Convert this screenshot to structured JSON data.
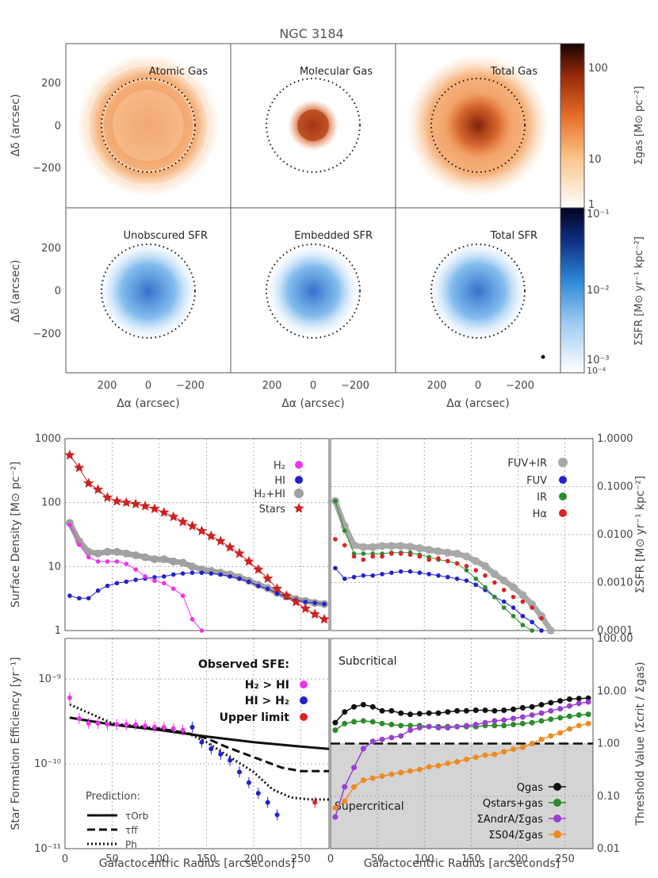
{
  "figure_title": "NGC 3184",
  "maps": {
    "gas_titles": [
      "Atomic Gas",
      "Molecular Gas",
      "Total Gas"
    ],
    "sfr_titles": [
      "Unobscured SFR",
      "Embedded SFR",
      "Total SFR"
    ],
    "ylabel": "Δδ (arcsec)",
    "xlabel": "Δα (arcsec)",
    "y_ticks": [
      "200",
      "0",
      "−200"
    ],
    "x_ticks": [
      "200",
      "0",
      "−200"
    ],
    "gas_colorbar_label": "Σgas [M⊙ pc⁻²]",
    "gas_colorbar_ticks": [
      "100",
      "10",
      "1"
    ],
    "sfr_colorbar_label": "ΣSFR [M⊙ yr⁻¹ kpc⁻²]",
    "sfr_colorbar_ticks": [
      "10⁻¹",
      "10⁻²",
      "10⁻³",
      "10⁻⁴"
    ],
    "colors": {
      "gas": "#e8702a",
      "sfr": "#2f8ad8"
    }
  },
  "chart_data": [
    {
      "type": "line",
      "name": "surface-density",
      "ylabel": "Surface Density [M⊙ pc⁻²]",
      "xlim": [
        0,
        280
      ],
      "ylim": [
        1,
        1000
      ],
      "ylog": true,
      "y_ticks": [
        "1000",
        "100",
        "10",
        "1"
      ],
      "x": [
        5,
        15,
        25,
        35,
        45,
        55,
        65,
        75,
        85,
        95,
        105,
        115,
        125,
        135,
        145,
        155,
        165,
        175,
        185,
        195,
        205,
        215,
        225,
        235,
        245,
        255,
        265,
        275
      ],
      "series": [
        {
          "name": "H₂",
          "color": "#ee33ee",
          "values": [
            45,
            22,
            14,
            12,
            12,
            12,
            11,
            9,
            7,
            6,
            5.5,
            4.5,
            3.5,
            1.5,
            1,
            null,
            null,
            null,
            null,
            null,
            null,
            null,
            null,
            null,
            null,
            null,
            null,
            null
          ]
        },
        {
          "name": "HI",
          "color": "#2222cc",
          "values": [
            3.5,
            3.2,
            3.2,
            4.2,
            5,
            5.5,
            5.8,
            6.2,
            6.5,
            6.8,
            7,
            7.5,
            7.8,
            8,
            8,
            7.8,
            7.5,
            7,
            6.5,
            5.8,
            5,
            4.5,
            3.8,
            3.3,
            3,
            2.8,
            2.7,
            2.6
          ]
        },
        {
          "name": "H₂+HI",
          "color": "#a0a0a0",
          "values": [
            48,
            25,
            17,
            16,
            17,
            17,
            16,
            15,
            14,
            13,
            13,
            12,
            11.5,
            10,
            9,
            8.5,
            8,
            7.5,
            6.8,
            6,
            5.2,
            4.6,
            3.9,
            3.4,
            3.1,
            2.9,
            2.7,
            2.6
          ]
        },
        {
          "name": "Stars",
          "color": "#cc2222",
          "values": [
            550,
            350,
            200,
            160,
            120,
            105,
            100,
            95,
            88,
            80,
            70,
            60,
            50,
            43,
            36,
            30,
            25,
            20,
            16,
            12,
            9,
            6.5,
            4.5,
            3.5,
            2.8,
            2.2,
            1.8,
            1.5
          ]
        }
      ]
    },
    {
      "type": "line",
      "name": "sfr-density",
      "ylabel": "ΣSFR [M⊙ yr⁻¹ kpc⁻²]",
      "xlim": [
        0,
        280
      ],
      "ylim": [
        0.0001,
        1
      ],
      "ylog": true,
      "y_ticks": [
        "1.0000",
        "0.1000",
        "0.0100",
        "0.0010",
        "0.0001"
      ],
      "x": [
        5,
        15,
        25,
        35,
        45,
        55,
        65,
        75,
        85,
        95,
        105,
        115,
        125,
        135,
        145,
        155,
        165,
        175,
        185,
        195,
        205,
        215,
        225,
        235,
        245,
        255,
        265,
        275
      ],
      "series": [
        {
          "name": "FUV+IR",
          "color": "#a8a8a8",
          "values": [
            0.05,
            0.015,
            0.006,
            0.0055,
            0.0055,
            0.0058,
            0.0058,
            0.0058,
            0.0056,
            0.0052,
            0.0048,
            0.0045,
            0.0042,
            0.004,
            0.0035,
            0.0028,
            0.0022,
            0.0015,
            0.0011,
            0.0008,
            0.00055,
            0.00035,
            0.0002,
            0.0001,
            null,
            null,
            null,
            null
          ]
        },
        {
          "name": "FUV",
          "color": "#2222cc",
          "values": [
            0.002,
            0.0012,
            0.0013,
            0.0014,
            0.0014,
            0.0015,
            0.0016,
            0.0017,
            0.0017,
            0.0016,
            0.0015,
            0.0014,
            0.0013,
            0.0012,
            0.0011,
            0.0009,
            0.0007,
            0.0005,
            0.0004,
            0.0003,
            0.0002,
            0.00015,
            0.0001,
            null,
            null,
            null,
            null,
            null
          ]
        },
        {
          "name": "IR",
          "color": "#2a8c2a",
          "values": [
            0.05,
            0.012,
            0.004,
            0.004,
            0.004,
            0.004,
            0.0042,
            0.0042,
            0.0042,
            0.0038,
            0.0034,
            0.003,
            0.0028,
            0.0025,
            0.0018,
            0.0012,
            0.0008,
            0.0005,
            0.0003,
            0.0002,
            0.00013,
            0.0001,
            null,
            null,
            null,
            null,
            null,
            null
          ]
        },
        {
          "name": "Hα",
          "color": "#dd2222",
          "values": [
            0.008,
            0.006,
            0.0035,
            0.003,
            0.0035,
            0.0035,
            0.004,
            0.004,
            0.0038,
            0.0035,
            0.003,
            0.0032,
            0.0028,
            0.0025,
            0.0022,
            0.0018,
            0.0014,
            0.001,
            0.0007,
            0.0005,
            0.0004,
            0.0003,
            0.00018,
            null,
            null,
            null,
            null,
            null
          ]
        }
      ]
    },
    {
      "type": "line",
      "name": "star-formation-efficiency",
      "ylabel": "Star Formation Efficiency [yr⁻¹]",
      "xlabel": "Galactocentric Radius [arcseconds]",
      "xlim": [
        0,
        280
      ],
      "ylim": [
        1e-11,
        3e-09
      ],
      "ylog": true,
      "y_ticks": [
        "10⁻⁹",
        "10⁻¹⁰",
        "10⁻¹¹"
      ],
      "x_ticks": [
        "0",
        "50",
        "100",
        "150",
        "200",
        "250"
      ],
      "legend_title": "Observed SFE:",
      "points": [
        {
          "name": "H₂ > HI",
          "color": "#ee33ee",
          "x": [
            5,
            15,
            25,
            35,
            45,
            55,
            65,
            75,
            85,
            95,
            105,
            115,
            125
          ],
          "y": [
            6e-10,
            3.4e-10,
            3e-10,
            3e-10,
            2.9e-10,
            2.9e-10,
            2.9e-10,
            2.9e-10,
            2.8e-10,
            2.7e-10,
            2.7e-10,
            2.6e-10,
            2.5e-10
          ]
        },
        {
          "name": "HI > H₂",
          "color": "#2222cc",
          "x": [
            135,
            145,
            155,
            165,
            175,
            185,
            195,
            205,
            215,
            225
          ],
          "y": [
            2.7e-10,
            1.8e-10,
            1.5e-10,
            1.3e-10,
            1.1e-10,
            8e-11,
            6e-11,
            4.5e-11,
            3.5e-11,
            2.5e-11
          ]
        },
        {
          "name": "Upper limit",
          "color": "#dd2222",
          "x": [
            265
          ],
          "y": [
            3.5e-11
          ]
        }
      ],
      "prediction_title": "Prediction:",
      "series": [
        {
          "name": "τOrb",
          "dash": "solid",
          "x": [
            5,
            50,
            100,
            150,
            200,
            250,
            280
          ],
          "values": [
            3.5e-10,
            2.9e-10,
            2.5e-10,
            2.1e-10,
            1.8e-10,
            1.6e-10,
            1.5e-10
          ]
        },
        {
          "name": "τff",
          "dash": "dashed",
          "x": [
            5,
            50,
            100,
            130,
            150,
            170,
            200,
            230,
            250,
            280
          ],
          "values": [
            3.5e-10,
            2.9e-10,
            2.6e-10,
            2.3e-10,
            2e-10,
            1.6e-10,
            1.2e-10,
            9e-11,
            8.2e-11,
            8.2e-11
          ]
        },
        {
          "name": "Ph",
          "dash": "dotted",
          "x": [
            5,
            50,
            100,
            130,
            150,
            170,
            200,
            220,
            240,
            260,
            280
          ],
          "values": [
            5e-10,
            3e-10,
            2.6e-10,
            2.3e-10,
            1.8e-10,
            1.3e-10,
            8e-11,
            5e-11,
            4e-11,
            3.8e-11,
            3.8e-11
          ]
        }
      ]
    },
    {
      "type": "line",
      "name": "threshold",
      "ylabel": "Threshold Value (Σcrit / Σgas)",
      "xlabel": "Galactocentric Radius [arcseconds]",
      "xlim": [
        0,
        280
      ],
      "ylim": [
        0.01,
        100
      ],
      "ylog": true,
      "y_ticks": [
        "100.00",
        "10.00",
        "1.00",
        "0.10",
        "0.01"
      ],
      "x_ticks": [
        "0",
        "50",
        "100",
        "150",
        "200",
        "250"
      ],
      "threshold": 1.0,
      "region_labels": [
        "Subcritical",
        "Supercritical"
      ],
      "x": [
        5,
        15,
        25,
        35,
        45,
        55,
        65,
        75,
        85,
        95,
        105,
        115,
        125,
        135,
        145,
        155,
        165,
        175,
        185,
        195,
        205,
        215,
        225,
        235,
        245,
        255,
        265,
        275
      ],
      "series": [
        {
          "name": "Qgas",
          "color": "#111111",
          "values": [
            2.5,
            4,
            5,
            5.5,
            5,
            4.2,
            4.2,
            3.8,
            3.6,
            3.7,
            3.8,
            3.8,
            4,
            4.2,
            4.2,
            4.3,
            4.3,
            4.2,
            4.3,
            4.5,
            4.8,
            5,
            5.5,
            6,
            6.5,
            7,
            7.2,
            7.3
          ]
        },
        {
          "name": "Qstars+gas",
          "color": "#2a8c2a",
          "values": [
            1.8,
            2.4,
            2.6,
            2.7,
            2.6,
            2.4,
            2.3,
            2.2,
            2.2,
            2.2,
            2.1,
            2.1,
            2.1,
            2.1,
            2.1,
            2.1,
            2.2,
            2.2,
            2.2,
            2.3,
            2.4,
            2.5,
            2.7,
            2.9,
            3.1,
            3.3,
            3.5,
            3.6
          ]
        },
        {
          "name": "ΣAndrA/Σgas",
          "color": "#9a3fd0",
          "values": [
            0.04,
            0.15,
            0.35,
            0.8,
            1.1,
            1.2,
            1.3,
            1.4,
            1.8,
            2,
            2.1,
            2,
            2,
            2.1,
            2.2,
            2.3,
            2.5,
            2.7,
            2.8,
            3,
            3.2,
            3.5,
            3.8,
            4.2,
            4.6,
            5.2,
            5.8,
            6.2
          ]
        },
        {
          "name": "ΣS04/Σgas",
          "color": "#f08a1e",
          "values": [
            0.06,
            0.08,
            0.15,
            0.2,
            0.22,
            0.24,
            0.26,
            0.28,
            0.3,
            0.32,
            0.36,
            0.38,
            0.42,
            0.45,
            0.5,
            0.55,
            0.6,
            0.62,
            0.7,
            0.78,
            0.85,
            1,
            1.2,
            1.4,
            1.6,
            1.9,
            2.2,
            2.4
          ]
        }
      ]
    }
  ]
}
